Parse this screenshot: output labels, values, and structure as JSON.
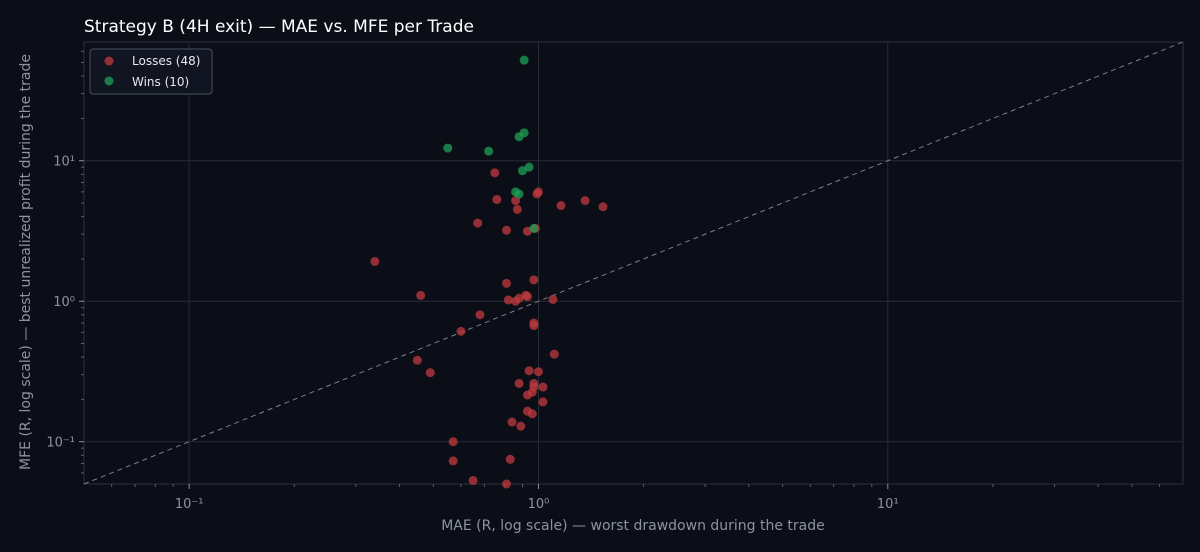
{
  "chart_data": {
    "type": "scatter",
    "title": "Strategy B (4H exit) — MAE vs. MFE per Trade",
    "xlabel": "MAE (R, log scale) — worst drawdown during the trade",
    "ylabel": "MFE (R, log scale) — best unrealized profit during the trade",
    "xscale": "log",
    "yscale": "log",
    "xlim": [
      0.05,
      70
    ],
    "ylim": [
      0.05,
      70
    ],
    "xticks": [
      {
        "value": 0.1,
        "label": "10⁻¹"
      },
      {
        "value": 1,
        "label": "10⁰"
      },
      {
        "value": 10,
        "label": "10¹"
      }
    ],
    "yticks": [
      {
        "value": 0.1,
        "label": "10⁻¹"
      },
      {
        "value": 1,
        "label": "10⁰"
      },
      {
        "value": 10,
        "label": "10¹"
      }
    ],
    "grid": true,
    "legend_position": "top-left",
    "reference_line": "y = x",
    "series": [
      {
        "name": "Losses (48)",
        "color": "#c0393f",
        "points": [
          {
            "x": 0.34,
            "y": 1.92
          },
          {
            "x": 0.46,
            "y": 1.1
          },
          {
            "x": 0.45,
            "y": 0.38
          },
          {
            "x": 0.49,
            "y": 0.31
          },
          {
            "x": 0.57,
            "y": 0.1
          },
          {
            "x": 0.57,
            "y": 0.073
          },
          {
            "x": 0.6,
            "y": 0.61
          },
          {
            "x": 0.65,
            "y": 0.053
          },
          {
            "x": 0.67,
            "y": 3.6
          },
          {
            "x": 0.68,
            "y": 0.8
          },
          {
            "x": 0.75,
            "y": 8.2
          },
          {
            "x": 0.76,
            "y": 5.3
          },
          {
            "x": 0.81,
            "y": 3.2
          },
          {
            "x": 0.81,
            "y": 1.34
          },
          {
            "x": 0.82,
            "y": 1.02
          },
          {
            "x": 0.83,
            "y": 0.075
          },
          {
            "x": 0.84,
            "y": 0.138
          },
          {
            "x": 0.81,
            "y": 0.05
          },
          {
            "x": 0.86,
            "y": 1.0
          },
          {
            "x": 0.86,
            "y": 5.2
          },
          {
            "x": 0.87,
            "y": 4.5
          },
          {
            "x": 0.88,
            "y": 1.05
          },
          {
            "x": 0.88,
            "y": 0.26
          },
          {
            "x": 0.89,
            "y": 0.129
          },
          {
            "x": 0.92,
            "y": 1.1
          },
          {
            "x": 0.93,
            "y": 1.08
          },
          {
            "x": 0.93,
            "y": 3.15
          },
          {
            "x": 0.93,
            "y": 0.215
          },
          {
            "x": 0.93,
            "y": 0.165
          },
          {
            "x": 0.94,
            "y": 0.32
          },
          {
            "x": 0.96,
            "y": 0.225
          },
          {
            "x": 0.97,
            "y": 0.245
          },
          {
            "x": 0.96,
            "y": 0.158
          },
          {
            "x": 0.97,
            "y": 0.26
          },
          {
            "x": 0.97,
            "y": 1.42
          },
          {
            "x": 0.97,
            "y": 0.7
          },
          {
            "x": 0.97,
            "y": 0.67
          },
          {
            "x": 0.99,
            "y": 5.8
          },
          {
            "x": 1.0,
            "y": 6.0
          },
          {
            "x": 1.0,
            "y": 0.315
          },
          {
            "x": 1.03,
            "y": 0.245
          },
          {
            "x": 1.03,
            "y": 0.192
          },
          {
            "x": 1.1,
            "y": 1.03
          },
          {
            "x": 1.11,
            "y": 0.42
          },
          {
            "x": 1.16,
            "y": 4.8
          },
          {
            "x": 1.36,
            "y": 5.2
          },
          {
            "x": 1.53,
            "y": 4.7
          },
          {
            "x": 0.98,
            "y": 3.3
          }
        ]
      },
      {
        "name": "Wins (10)",
        "color": "#1fa055",
        "points": [
          {
            "x": 0.91,
            "y": 52
          },
          {
            "x": 0.91,
            "y": 15.8
          },
          {
            "x": 0.88,
            "y": 14.8
          },
          {
            "x": 0.55,
            "y": 12.3
          },
          {
            "x": 0.72,
            "y": 11.7
          },
          {
            "x": 0.94,
            "y": 9.0
          },
          {
            "x": 0.9,
            "y": 8.5
          },
          {
            "x": 0.86,
            "y": 6.0
          },
          {
            "x": 0.88,
            "y": 5.8
          },
          {
            "x": 0.97,
            "y": 3.3
          }
        ]
      }
    ]
  }
}
